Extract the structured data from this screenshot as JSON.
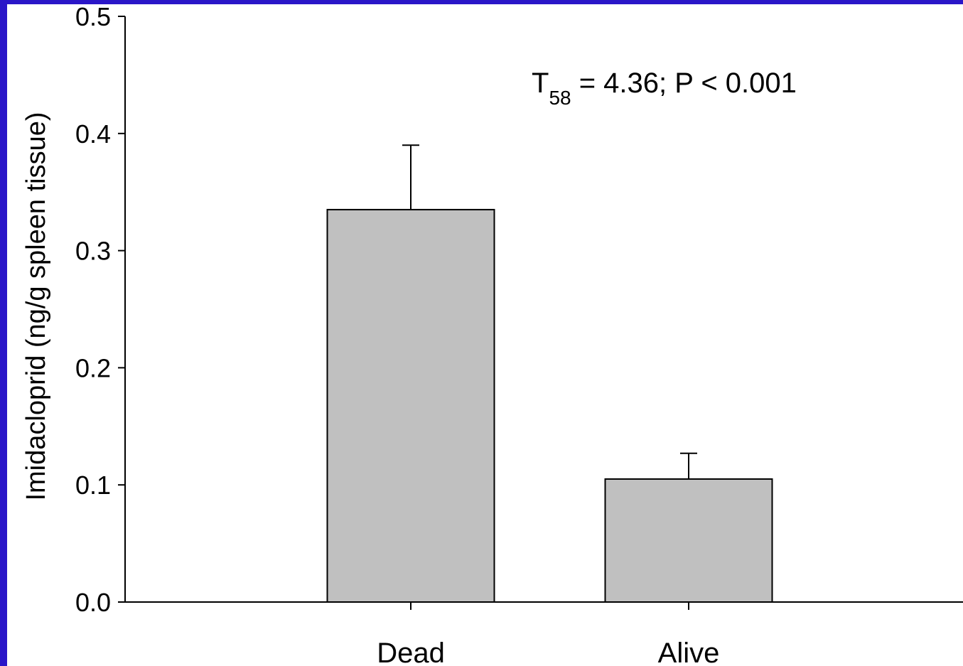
{
  "page": {
    "background_color": "#2a16c8",
    "plot_background_color": "#ffffff"
  },
  "chart_data": {
    "type": "bar",
    "title": "",
    "xlabel": "",
    "ylabel": "Imidacloprid (ng/g spleen tissue)",
    "categories": [
      "Dead",
      "Alive"
    ],
    "series": [
      {
        "values": [
          0.335,
          0.105
        ],
        "error_upper": [
          0.055,
          0.022
        ],
        "color": "#c0c0c0",
        "edge_color": "#000000"
      }
    ],
    "ylim": [
      0.0,
      0.5
    ],
    "yticks": [
      0.0,
      0.1,
      0.2,
      0.3,
      0.4,
      0.5
    ],
    "ytick_labels": [
      "0.0",
      "0.1",
      "0.2",
      "0.3",
      "0.4",
      "0.5"
    ],
    "grid": false,
    "legend": "none",
    "annotation": {
      "stat_symbol": "T",
      "stat_subscript": "58",
      "rest": " = 4.36; P < 0.001"
    }
  }
}
